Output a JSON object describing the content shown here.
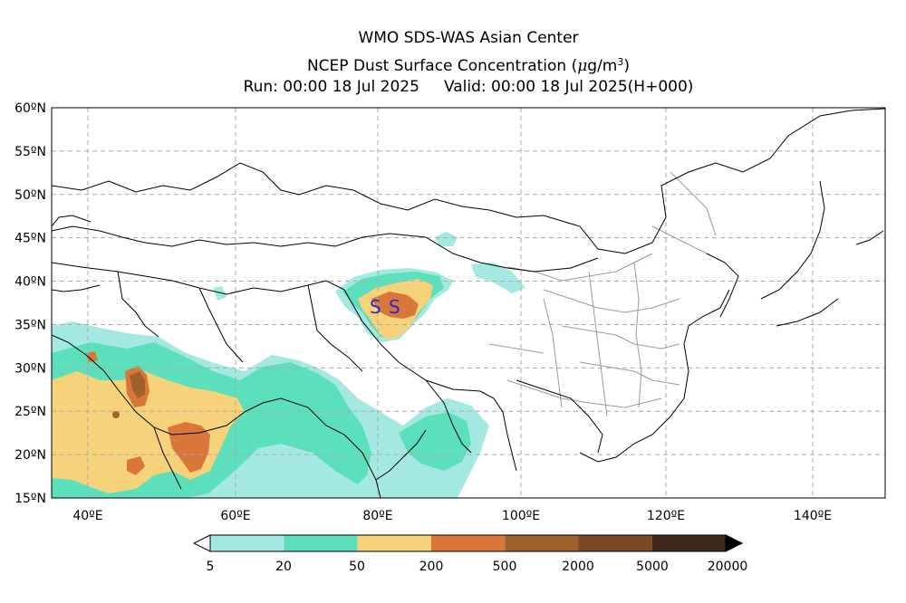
{
  "header": {
    "line1": "WMO SDS-WAS Asian Center",
    "line2_main": "NCEP Dust Surface Concentration (",
    "line2_unit_mu": "μ",
    "line2_unit_g": "g/m",
    "line2_unit_exp": "3",
    "line2_close": ")",
    "run": "Run: 00:00 18 Jul 2025",
    "valid": "Valid: 00:00 18 Jul 2025(H+000)"
  },
  "map": {
    "lat_labels": [
      "60ºN",
      "55ºN",
      "50ºN",
      "45ºN",
      "40ºN",
      "35ºN",
      "30ºN",
      "25ºN",
      "20ºN",
      "15ºN"
    ],
    "lon_labels": [
      "40ºE",
      "60ºE",
      "80ºE",
      "100ºE",
      "120ºE",
      "140ºE"
    ],
    "markers": [
      "S",
      "S"
    ],
    "colors": {
      "bin1": "#a3e9e1",
      "bin2": "#5be0bb",
      "bin3": "#f6d27a",
      "bin4": "#d9773a",
      "bin5": "#a0612a",
      "bin6": "#7a4a24",
      "bin7": "#3d2718",
      "coast": "#000000",
      "province": "#9a9a9a",
      "grid": "#aaaaaa",
      "marker": "#2a2ac8"
    }
  },
  "colorbar": {
    "labels": [
      "5",
      "20",
      "50",
      "200",
      "500",
      "2000",
      "5000",
      "20000"
    ],
    "colors": [
      "#a3e9e1",
      "#5be0bb",
      "#f6d27a",
      "#d9773a",
      "#a0612a",
      "#7a4a24",
      "#3d2718"
    ]
  }
}
